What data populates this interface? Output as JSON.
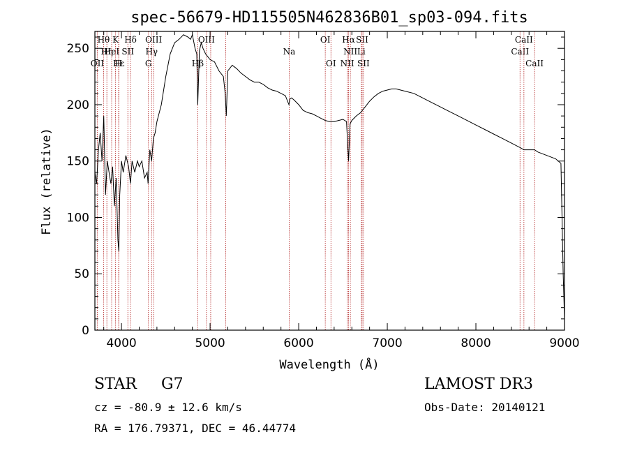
{
  "chart_data": {
    "type": "line",
    "title": "spec-56679-HD115505N462836B01_sp03-094.fits",
    "xlabel": "Wavelength (Å)",
    "ylabel": "Flux (relative)",
    "xlim": [
      3700,
      9000
    ],
    "ylim": [
      0,
      265
    ],
    "x_ticks": [
      4000,
      5000,
      6000,
      7000,
      8000,
      9000
    ],
    "y_ticks": [
      0,
      50,
      100,
      150,
      200,
      250
    ],
    "x_tick_labels": [
      "4000",
      "5000",
      "6000",
      "7000",
      "8000",
      "9000"
    ],
    "y_tick_labels": [
      "0",
      "50",
      "100",
      "150",
      "200",
      "250"
    ],
    "grid": false,
    "series": [
      {
        "x": [
          3700,
          3720,
          3740,
          3760,
          3780,
          3800,
          3820,
          3840,
          3860,
          3880,
          3900,
          3920,
          3940,
          3960,
          3970,
          3980,
          4000,
          4020,
          4050,
          4080,
          4102,
          4120,
          4150,
          4180,
          4200,
          4230,
          4260,
          4290,
          4300,
          4320,
          4340,
          4360,
          4380,
          4400,
          4450,
          4500,
          4550,
          4600,
          4650,
          4700,
          4750,
          4780,
          4800,
          4830,
          4850,
          4861,
          4880,
          4900,
          4920,
          4950,
          5000,
          5050,
          5100,
          5150,
          5170,
          5183,
          5200,
          5250,
          5300,
          5350,
          5400,
          5450,
          5500,
          5550,
          5600,
          5650,
          5700,
          5750,
          5800,
          5850,
          5890,
          5900,
          5920,
          5950,
          6000,
          6050,
          6100,
          6150,
          6200,
          6250,
          6300,
          6350,
          6400,
          6450,
          6500,
          6540,
          6563,
          6580,
          6600,
          6650,
          6700,
          6750,
          6800,
          6850,
          6900,
          6950,
          7000,
          7050,
          7100,
          7150,
          7200,
          7300,
          7400,
          7500,
          7600,
          7700,
          7800,
          7900,
          8000,
          8100,
          8200,
          8300,
          8400,
          8498,
          8542,
          8600,
          8662,
          8700,
          8800,
          8900,
          8960,
          8985,
          9000
        ],
        "values": [
          140,
          130,
          160,
          175,
          150,
          190,
          120,
          150,
          140,
          130,
          145,
          110,
          135,
          80,
          70,
          120,
          150,
          140,
          155,
          145,
          130,
          150,
          140,
          150,
          145,
          150,
          135,
          140,
          130,
          160,
          150,
          170,
          175,
          185,
          200,
          225,
          245,
          255,
          258,
          262,
          260,
          258,
          262,
          250,
          245,
          200,
          248,
          255,
          250,
          245,
          240,
          238,
          230,
          225,
          210,
          190,
          230,
          235,
          232,
          228,
          225,
          222,
          220,
          220,
          218,
          215,
          213,
          212,
          210,
          208,
          200,
          205,
          206,
          204,
          200,
          195,
          193,
          192,
          190,
          188,
          186,
          185,
          185,
          186,
          187,
          185,
          150,
          183,
          186,
          190,
          193,
          198,
          203,
          207,
          210,
          212,
          213,
          214,
          214,
          213,
          212,
          210,
          206,
          202,
          198,
          194,
          190,
          186,
          182,
          178,
          174,
          170,
          166,
          162,
          160,
          160,
          160,
          158,
          155,
          152,
          148,
          50,
          10
        ]
      }
    ],
    "spectral_lines": [
      {
        "wavelength": 3727,
        "label": "OII",
        "row": 3
      },
      {
        "wavelength": 3798,
        "label": "Hθ",
        "row": 1
      },
      {
        "wavelength": 3835,
        "label": "Hη",
        "row": 2
      },
      {
        "wavelength": 3889,
        "label": "HeI",
        "row": 2
      },
      {
        "wavelength": 3933,
        "label": "K",
        "row": 1
      },
      {
        "wavelength": 3970,
        "label": "Hε",
        "row": 3
      },
      {
        "wavelength": 3968,
        "label": "H",
        "row": 3
      },
      {
        "wavelength": 4072,
        "label": "SII",
        "row": 2
      },
      {
        "wavelength": 4102,
        "label": "Hδ",
        "row": 1
      },
      {
        "wavelength": 4304,
        "label": "G",
        "row": 3
      },
      {
        "wavelength": 4340,
        "label": "Hγ",
        "row": 2
      },
      {
        "wavelength": 4363,
        "label": "OIII",
        "row": 1
      },
      {
        "wavelength": 4861,
        "label": "Hβ",
        "row": 3
      },
      {
        "wavelength": 4959,
        "label": "OIII",
        "row": 1
      },
      {
        "wavelength": 5007,
        "label": "",
        "row": 1
      },
      {
        "wavelength": 5177,
        "label": "",
        "row": 1
      },
      {
        "wavelength": 5893,
        "label": "Na",
        "row": 2
      },
      {
        "wavelength": 6300,
        "label": "OI",
        "row": 1
      },
      {
        "wavelength": 6364,
        "label": "OI",
        "row": 3
      },
      {
        "wavelength": 6548,
        "label": "NII",
        "row": 3
      },
      {
        "wavelength": 6563,
        "label": "Hα",
        "row": 1
      },
      {
        "wavelength": 6583,
        "label": "NII",
        "row": 2
      },
      {
        "wavelength": 6707,
        "label": "Li",
        "row": 2
      },
      {
        "wavelength": 6716,
        "label": "SII",
        "row": 1
      },
      {
        "wavelength": 6731,
        "label": "SII",
        "row": 3
      },
      {
        "wavelength": 8498,
        "label": "CaII",
        "row": 2
      },
      {
        "wavelength": 8542,
        "label": "CaII",
        "row": 1
      },
      {
        "wavelength": 8662,
        "label": "CaII",
        "row": 3
      }
    ],
    "colors": {
      "spectrum": "#000000",
      "lines": "#b22222"
    }
  },
  "info": {
    "class": "STAR",
    "subclass": "G7",
    "survey": "LAMOST DR3",
    "cz": "cz = -80.9 ± 12.6 km/s",
    "obs_date": "Obs-Date: 20140121",
    "coords": "RA = 176.79371, DEC =  46.44774"
  }
}
